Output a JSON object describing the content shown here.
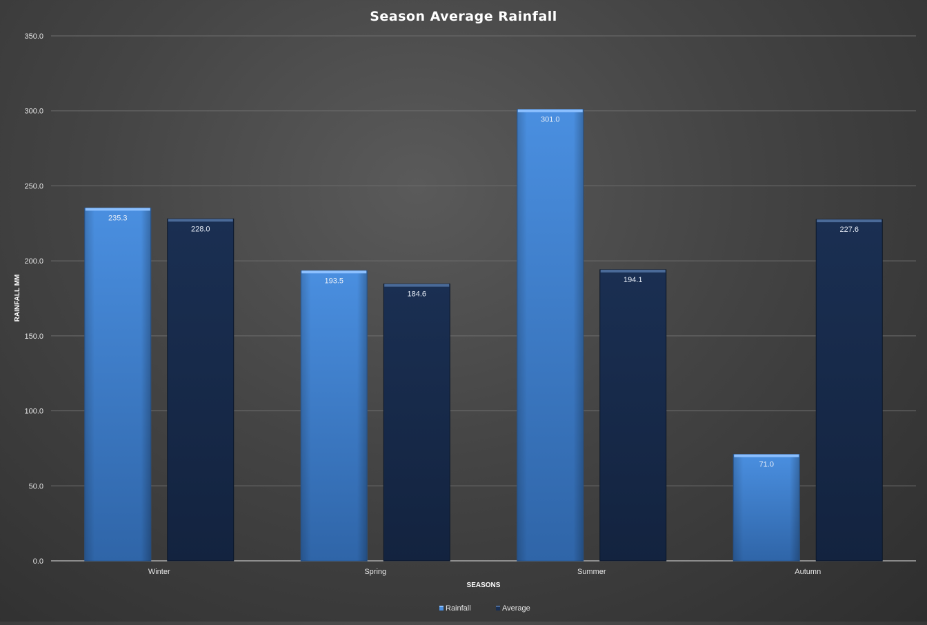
{
  "chart_data": {
    "type": "bar",
    "title": "Season Average Rainfall",
    "xlabel": "SEASONS",
    "ylabel": "RAINFALL MM",
    "categories": [
      "Winter",
      "Spring",
      "Summer",
      "Autumn"
    ],
    "series": [
      {
        "name": "Rainfall",
        "values": [
          235.3,
          193.5,
          301.0,
          71.0
        ],
        "color": "#3f84d6"
      },
      {
        "name": "Average",
        "values": [
          228.0,
          184.6,
          194.1,
          227.6
        ],
        "color": "#172a4a"
      }
    ],
    "ylim": [
      0,
      350
    ],
    "yticks": [
      "0.0",
      "50.0",
      "100.0",
      "150.0",
      "200.0",
      "250.0",
      "300.0",
      "350.0"
    ],
    "data_labels": {
      "Rainfall": [
        "235.3",
        "193.5",
        "301.0",
        "71.0"
      ],
      "Average": [
        "228.0",
        "184.6",
        "194.1",
        "227.6"
      ]
    },
    "grid": true,
    "legend_position": "bottom-center"
  }
}
